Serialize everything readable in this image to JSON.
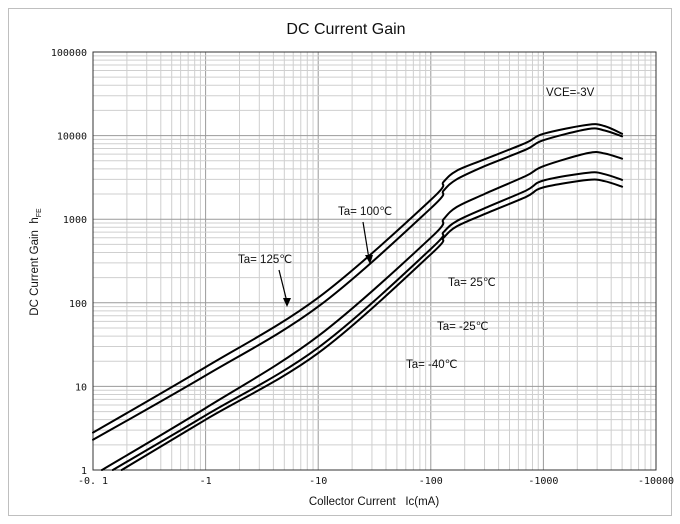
{
  "chart_data": {
    "type": "line",
    "title": "DC Current Gain",
    "xlabel": "Collector Current   Ic(mA)",
    "ylabel": "DC Current Gain",
    "ylabel_symbol": "h",
    "ylabel_subscript": "FE",
    "x_scale": "log",
    "y_scale": "log",
    "xlim": [
      0.1,
      10000
    ],
    "ylim": [
      1,
      100000
    ],
    "grid": true,
    "x_ticks": [
      {
        "value": 0.1,
        "label": "-0. 1"
      },
      {
        "value": 1,
        "label": "-1"
      },
      {
        "value": 10,
        "label": "-10"
      },
      {
        "value": 100,
        "label": "-100"
      },
      {
        "value": 1000,
        "label": "-1000"
      },
      {
        "value": 10000,
        "label": "-10000"
      }
    ],
    "y_ticks": [
      {
        "value": 1,
        "label": "1"
      },
      {
        "value": 10,
        "label": "10"
      },
      {
        "value": 100,
        "label": "100"
      },
      {
        "value": 1000,
        "label": "1000"
      },
      {
        "value": 10000,
        "label": "10000"
      },
      {
        "value": 100000,
        "label": "100000"
      }
    ],
    "condition_label": "VCE=-3V",
    "series": [
      {
        "name": "Ta= 125℃",
        "x": [
          0.1,
          1,
          10,
          100,
          130,
          170,
          300,
          700,
          1000,
          2500,
          3500,
          5000
        ],
        "y": [
          2.8,
          17,
          115,
          1700,
          2800,
          3800,
          5200,
          8200,
          10500,
          13500,
          13000,
          10500
        ]
      },
      {
        "name": "Ta= 100℃",
        "x": [
          0.1,
          1,
          10,
          100,
          130,
          170,
          300,
          700,
          1000,
          2500,
          3500,
          5000
        ],
        "y": [
          2.3,
          13.5,
          90,
          1350,
          2200,
          3000,
          4300,
          6800,
          8800,
          12000,
          11500,
          9800
        ]
      },
      {
        "name": "Ta= 25℃",
        "x": [
          0.12,
          1,
          10,
          100,
          130,
          170,
          300,
          700,
          1000,
          2500,
          3500,
          5000
        ],
        "y": [
          1,
          5.5,
          40,
          600,
          1000,
          1400,
          2000,
          3300,
          4300,
          6200,
          6100,
          5300
        ]
      },
      {
        "name": "Ta= -25℃",
        "x": [
          0.15,
          1,
          10,
          100,
          130,
          170,
          300,
          700,
          1000,
          2500,
          3500,
          5000
        ],
        "y": [
          1,
          4.5,
          29,
          440,
          700,
          950,
          1350,
          2200,
          2900,
          3600,
          3450,
          2950
        ]
      },
      {
        "name": "Ta= -40℃",
        "x": [
          0.18,
          1,
          10,
          100,
          130,
          170,
          300,
          700,
          1000,
          2500,
          3500,
          5000
        ],
        "y": [
          1,
          4,
          25,
          380,
          600,
          820,
          1150,
          1850,
          2400,
          2950,
          2850,
          2450
        ]
      }
    ]
  }
}
